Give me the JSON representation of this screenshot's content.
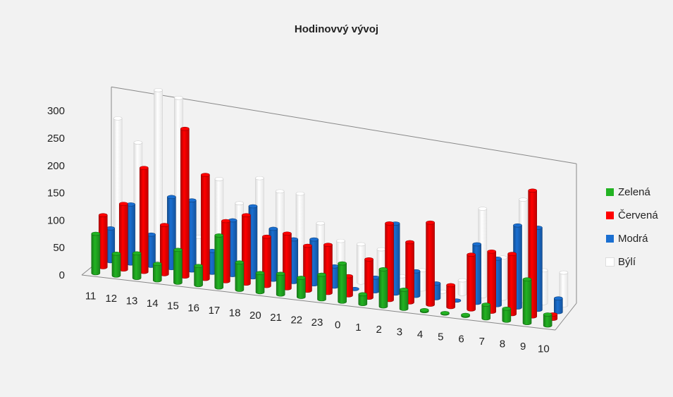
{
  "chart_data": {
    "type": "bar",
    "subtype": "3d-column",
    "title": "Hodinovvý vývoj",
    "categories": [
      "11",
      "12",
      "13",
      "14",
      "15",
      "16",
      "17",
      "18",
      "20",
      "21",
      "22",
      "23",
      "0",
      "1",
      "2",
      "3",
      "4",
      "5",
      "6",
      "7",
      "8",
      "9",
      "10"
    ],
    "ylim": [
      0,
      300
    ],
    "yticks": [
      0,
      50,
      100,
      150,
      200,
      250,
      300
    ],
    "grid": false,
    "legend_position": "right",
    "series": [
      {
        "name": "Zelená",
        "color": "#22b322",
        "values": [
          72,
          40,
          45,
          30,
          60,
          35,
          95,
          50,
          35,
          38,
          35,
          45,
          70,
          18,
          68,
          35,
          2,
          1,
          2,
          25,
          22,
          80,
          20
        ]
      },
      {
        "name": "Červená",
        "color": "#ff0000",
        "values": [
          95,
          120,
          190,
          90,
          270,
          190,
          110,
          125,
          90,
          100,
          82,
          88,
          35,
          70,
          140,
          110,
          150,
          40,
          100,
          110,
          110,
          230,
          8
        ]
      },
      {
        "name": "Modrá",
        "color": "#1a6fd1",
        "values": [
          60,
          108,
          57,
          130,
          128,
          40,
          100,
          130,
          93,
          78,
          82,
          37,
          0,
          25,
          128,
          45,
          27,
          0,
          107,
          85,
          150,
          150,
          25
        ]
      },
      {
        "name": "Býlí",
        "color": "#ffffff",
        "values": [
          250,
          210,
          310,
          300,
          50,
          160,
          120,
          170,
          150,
          150,
          100,
          72,
          70,
          65,
          20,
          35,
          0,
          25,
          160,
          75,
          185,
          60,
          60
        ]
      }
    ]
  }
}
